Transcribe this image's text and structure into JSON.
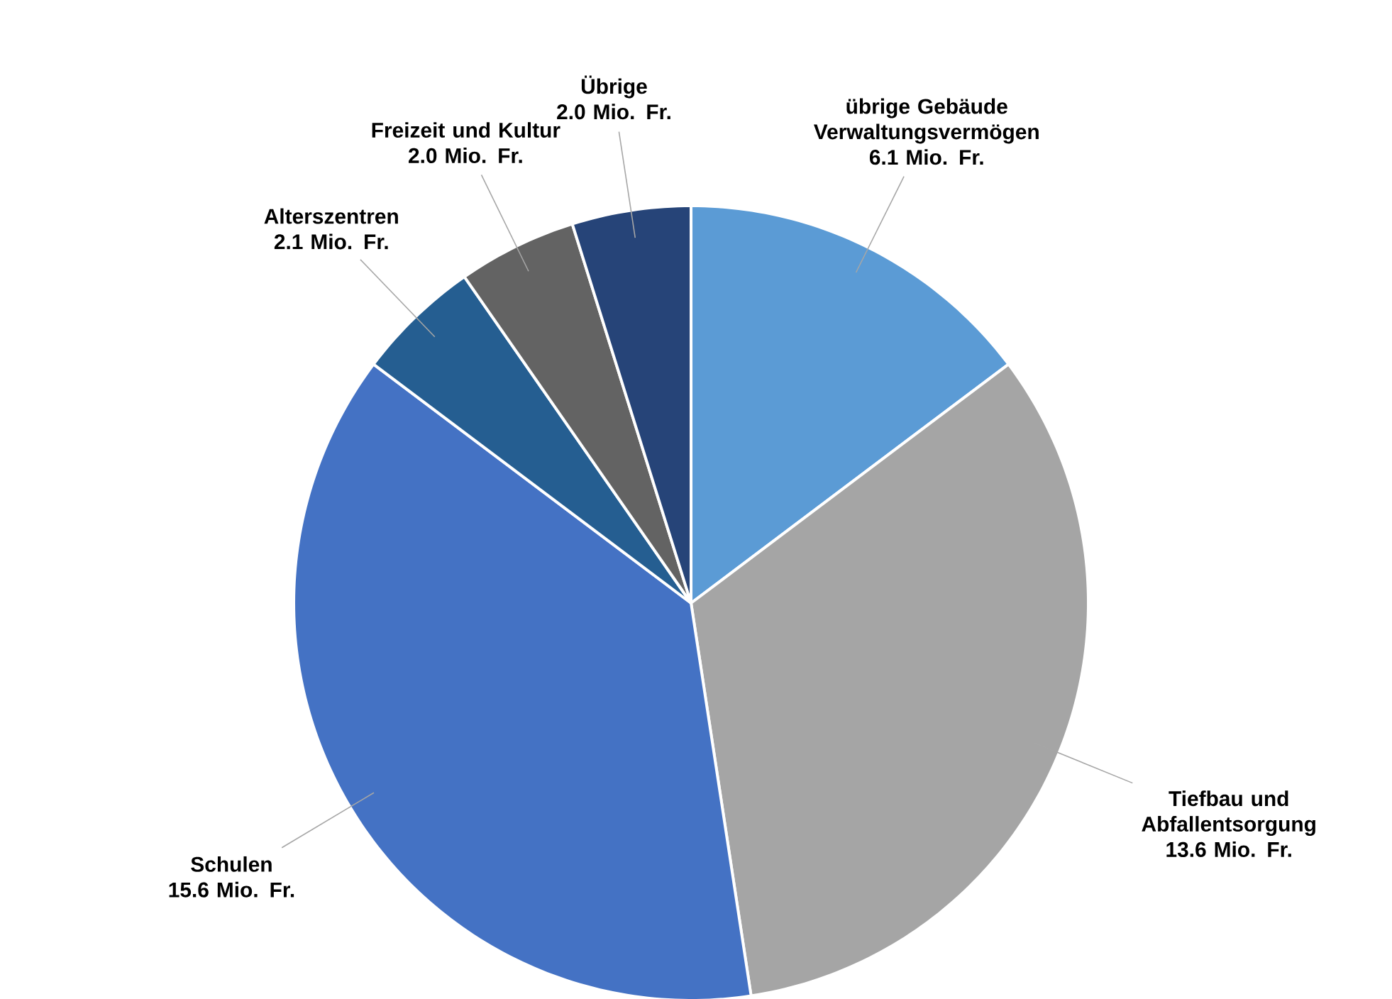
{
  "chart_data": {
    "type": "pie",
    "categories": [
      "übrige Gebäude Verwaltungsvermögen",
      "Tiefbau und Abfallentsorgung",
      "Schulen",
      "Alterszentren",
      "Freizeit und Kultur",
      "Übrige"
    ],
    "values": [
      6.1,
      13.6,
      15.6,
      2.1,
      2.0,
      2.0
    ],
    "value_labels": [
      "6.1 Mio. Fr.",
      "13.6 Mio. Fr.",
      "15.6 Mio. Fr.",
      "2.1 Mio. Fr.",
      "2.0 Mio. Fr.",
      "2.0 Mio. Fr."
    ],
    "colors": [
      "#5b9bd5",
      "#a5a5a5",
      "#4472c4",
      "#255e91",
      "#636363",
      "#264478"
    ]
  }
}
